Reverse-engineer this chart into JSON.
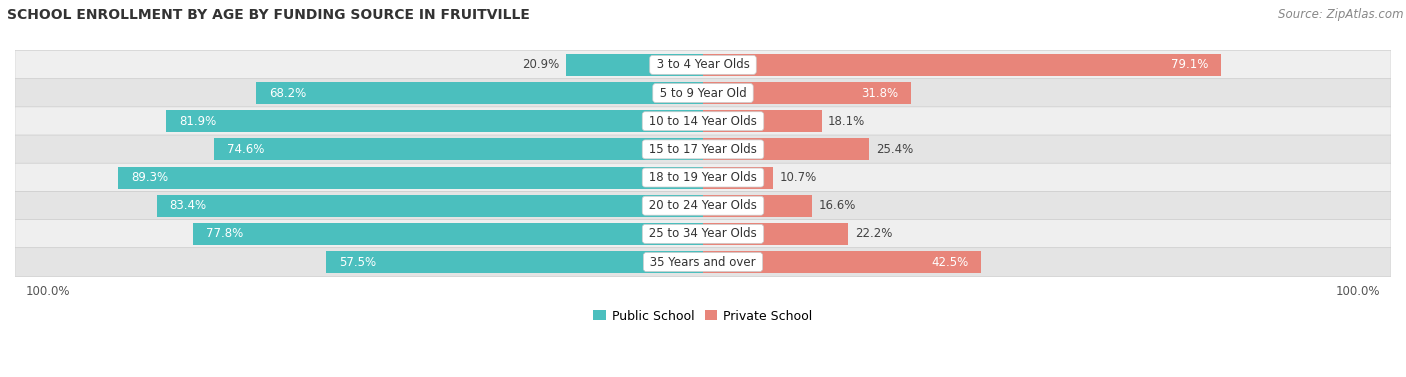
{
  "title": "SCHOOL ENROLLMENT BY AGE BY FUNDING SOURCE IN FRUITVILLE",
  "source": "Source: ZipAtlas.com",
  "categories": [
    "3 to 4 Year Olds",
    "5 to 9 Year Old",
    "10 to 14 Year Olds",
    "15 to 17 Year Olds",
    "18 to 19 Year Olds",
    "20 to 24 Year Olds",
    "25 to 34 Year Olds",
    "35 Years and over"
  ],
  "public_values": [
    20.9,
    68.2,
    81.9,
    74.6,
    89.3,
    83.4,
    77.8,
    57.5
  ],
  "private_values": [
    79.1,
    31.8,
    18.1,
    25.4,
    10.7,
    16.6,
    22.2,
    42.5
  ],
  "public_color": "#4BBFBE",
  "private_color": "#E8857A",
  "row_colors": [
    "#EFEFEF",
    "#E4E4E4"
  ],
  "label_bg_color": "#FFFFFF",
  "axis_label_left": "100.0%",
  "axis_label_right": "100.0%",
  "public_label": "Public School",
  "private_label": "Private School",
  "title_fontsize": 10,
  "source_fontsize": 8.5,
  "bar_label_fontsize": 8.5,
  "cat_label_fontsize": 8.5,
  "legend_fontsize": 9,
  "axis_tick_fontsize": 8.5,
  "xlim": 105
}
